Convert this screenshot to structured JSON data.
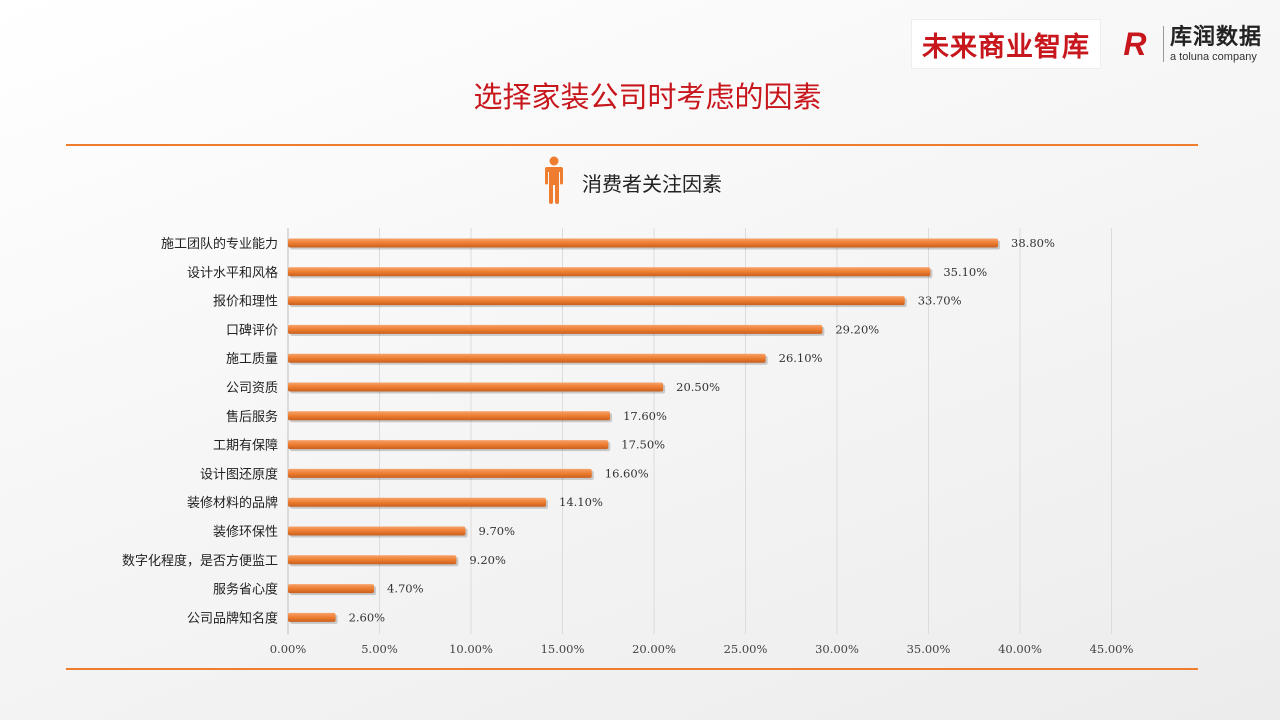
{
  "header": {
    "title": "选择家装公司时考虑的因素",
    "logo_weilai": "未来商业智库",
    "logo_kurun_mark": "R",
    "logo_kurun_name": "库润数据",
    "logo_kurun_sub": "a toluna company"
  },
  "colors": {
    "accent": "#ee7d30",
    "title_red": "#c8161d"
  },
  "icons": {
    "chart_head": "person-icon"
  },
  "chart_data": {
    "type": "bar",
    "orientation": "horizontal",
    "title": "消费者关注因素",
    "categories": [
      "施工团队的专业能力",
      "设计水平和风格",
      "报价和理性",
      "口碑评价",
      "施工质量",
      "公司资质",
      "售后服务",
      "工期有保障",
      "设计图还原度",
      "装修材料的品牌",
      "装修环保性",
      "数字化程度，是否方便监工",
      "服务省心度",
      "公司品牌知名度"
    ],
    "values": [
      38.8,
      35.1,
      33.7,
      29.2,
      26.1,
      20.5,
      17.6,
      17.5,
      16.6,
      14.1,
      9.7,
      9.2,
      4.7,
      2.6
    ],
    "value_labels": [
      "38.80%",
      "35.10%",
      "33.70%",
      "29.20%",
      "26.10%",
      "20.50%",
      "17.60%",
      "17.50%",
      "16.60%",
      "14.10%",
      "9.70%",
      "9.20%",
      "4.70%",
      "2.60%"
    ],
    "xlim": [
      0,
      45
    ],
    "xticks": [
      0,
      5,
      10,
      15,
      20,
      25,
      30,
      35,
      40,
      45
    ],
    "xtick_labels": [
      "0.00%",
      "5.00%",
      "10.00%",
      "15.00%",
      "20.00%",
      "25.00%",
      "30.00%",
      "35.00%",
      "40.00%",
      "45.00%"
    ],
    "grid": true,
    "bar_color": "#ee7d30"
  }
}
